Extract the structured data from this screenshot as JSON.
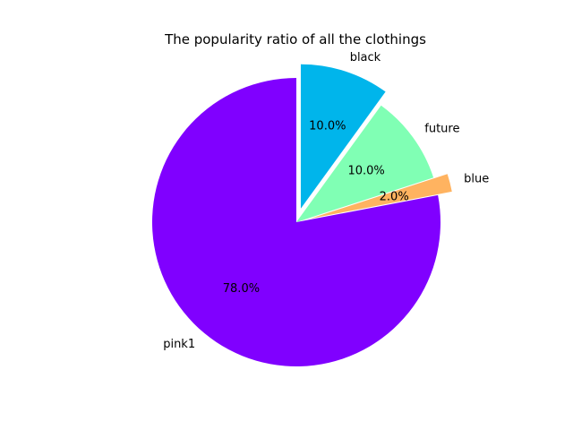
{
  "chart_data": {
    "type": "pie",
    "title": "The popularity ratio of all the clothings",
    "categories": [
      "pink1",
      "blue",
      "future",
      "black"
    ],
    "values": [
      78,
      2,
      10,
      10
    ],
    "percent_labels": [
      "78.0%",
      "2.0%",
      "10.0%",
      "10.0%"
    ],
    "colors": [
      "#8000ff",
      "#ffb360",
      "#80ffb4",
      "#00b5eb"
    ],
    "explode": [
      0,
      0.1,
      0,
      0.1
    ],
    "start_angle_deg": 90,
    "direction": "counterclockwise",
    "legend": "none"
  }
}
